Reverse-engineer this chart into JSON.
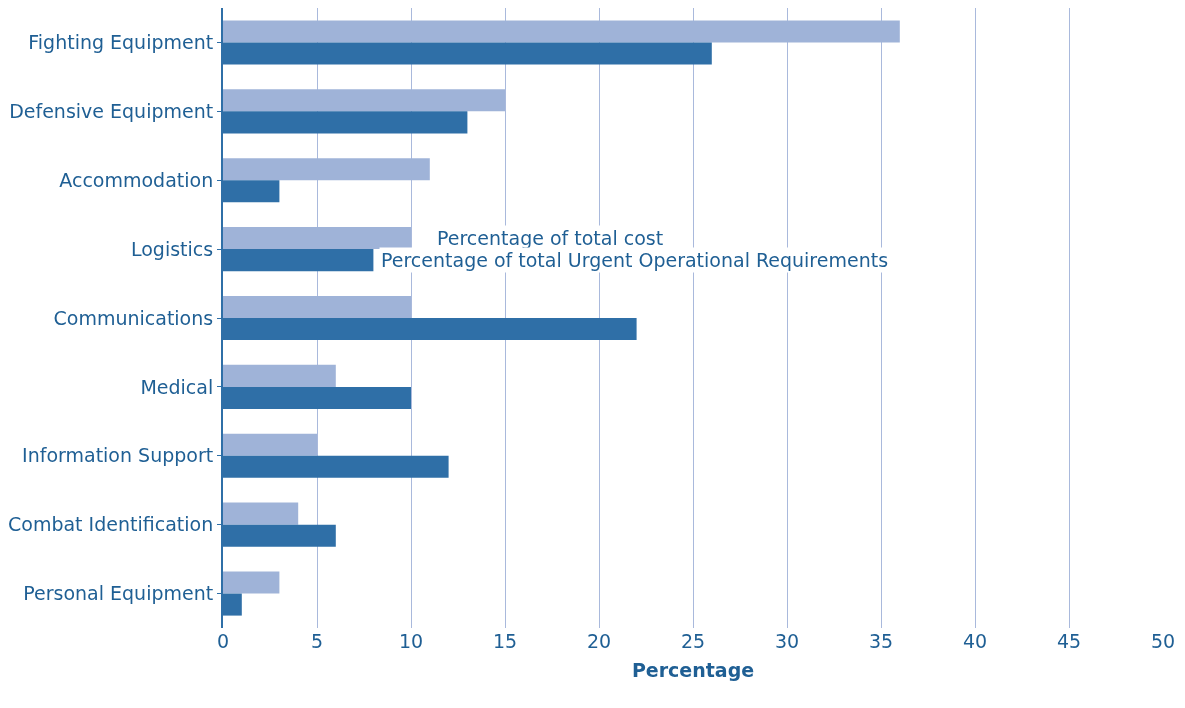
{
  "chart_data": {
    "type": "bar",
    "orientation": "horizontal",
    "xlabel": "Percentage",
    "categories": [
      "Fighting Equipment",
      "Defensive Equipment",
      "Accommodation",
      "Logistics",
      "Communications",
      "Medical",
      "Information Support",
      "Combat Identification",
      "Personal Equipment"
    ],
    "series": [
      {
        "name": "Percentage of total cost",
        "color": "#9fb3d8",
        "values": [
          36,
          15,
          11,
          10,
          10,
          6,
          5,
          4,
          3
        ]
      },
      {
        "name": "Percentage of total Urgent Operational Requirements",
        "color": "#2f6fa7",
        "values": [
          26,
          13,
          3,
          8,
          22,
          10,
          12,
          6,
          1
        ]
      }
    ],
    "xlim": [
      0,
      50
    ],
    "xticks": [
      0,
      5,
      10,
      15,
      20,
      25,
      30,
      35,
      40,
      45,
      50
    ],
    "grid": "x",
    "legend": false
  }
}
